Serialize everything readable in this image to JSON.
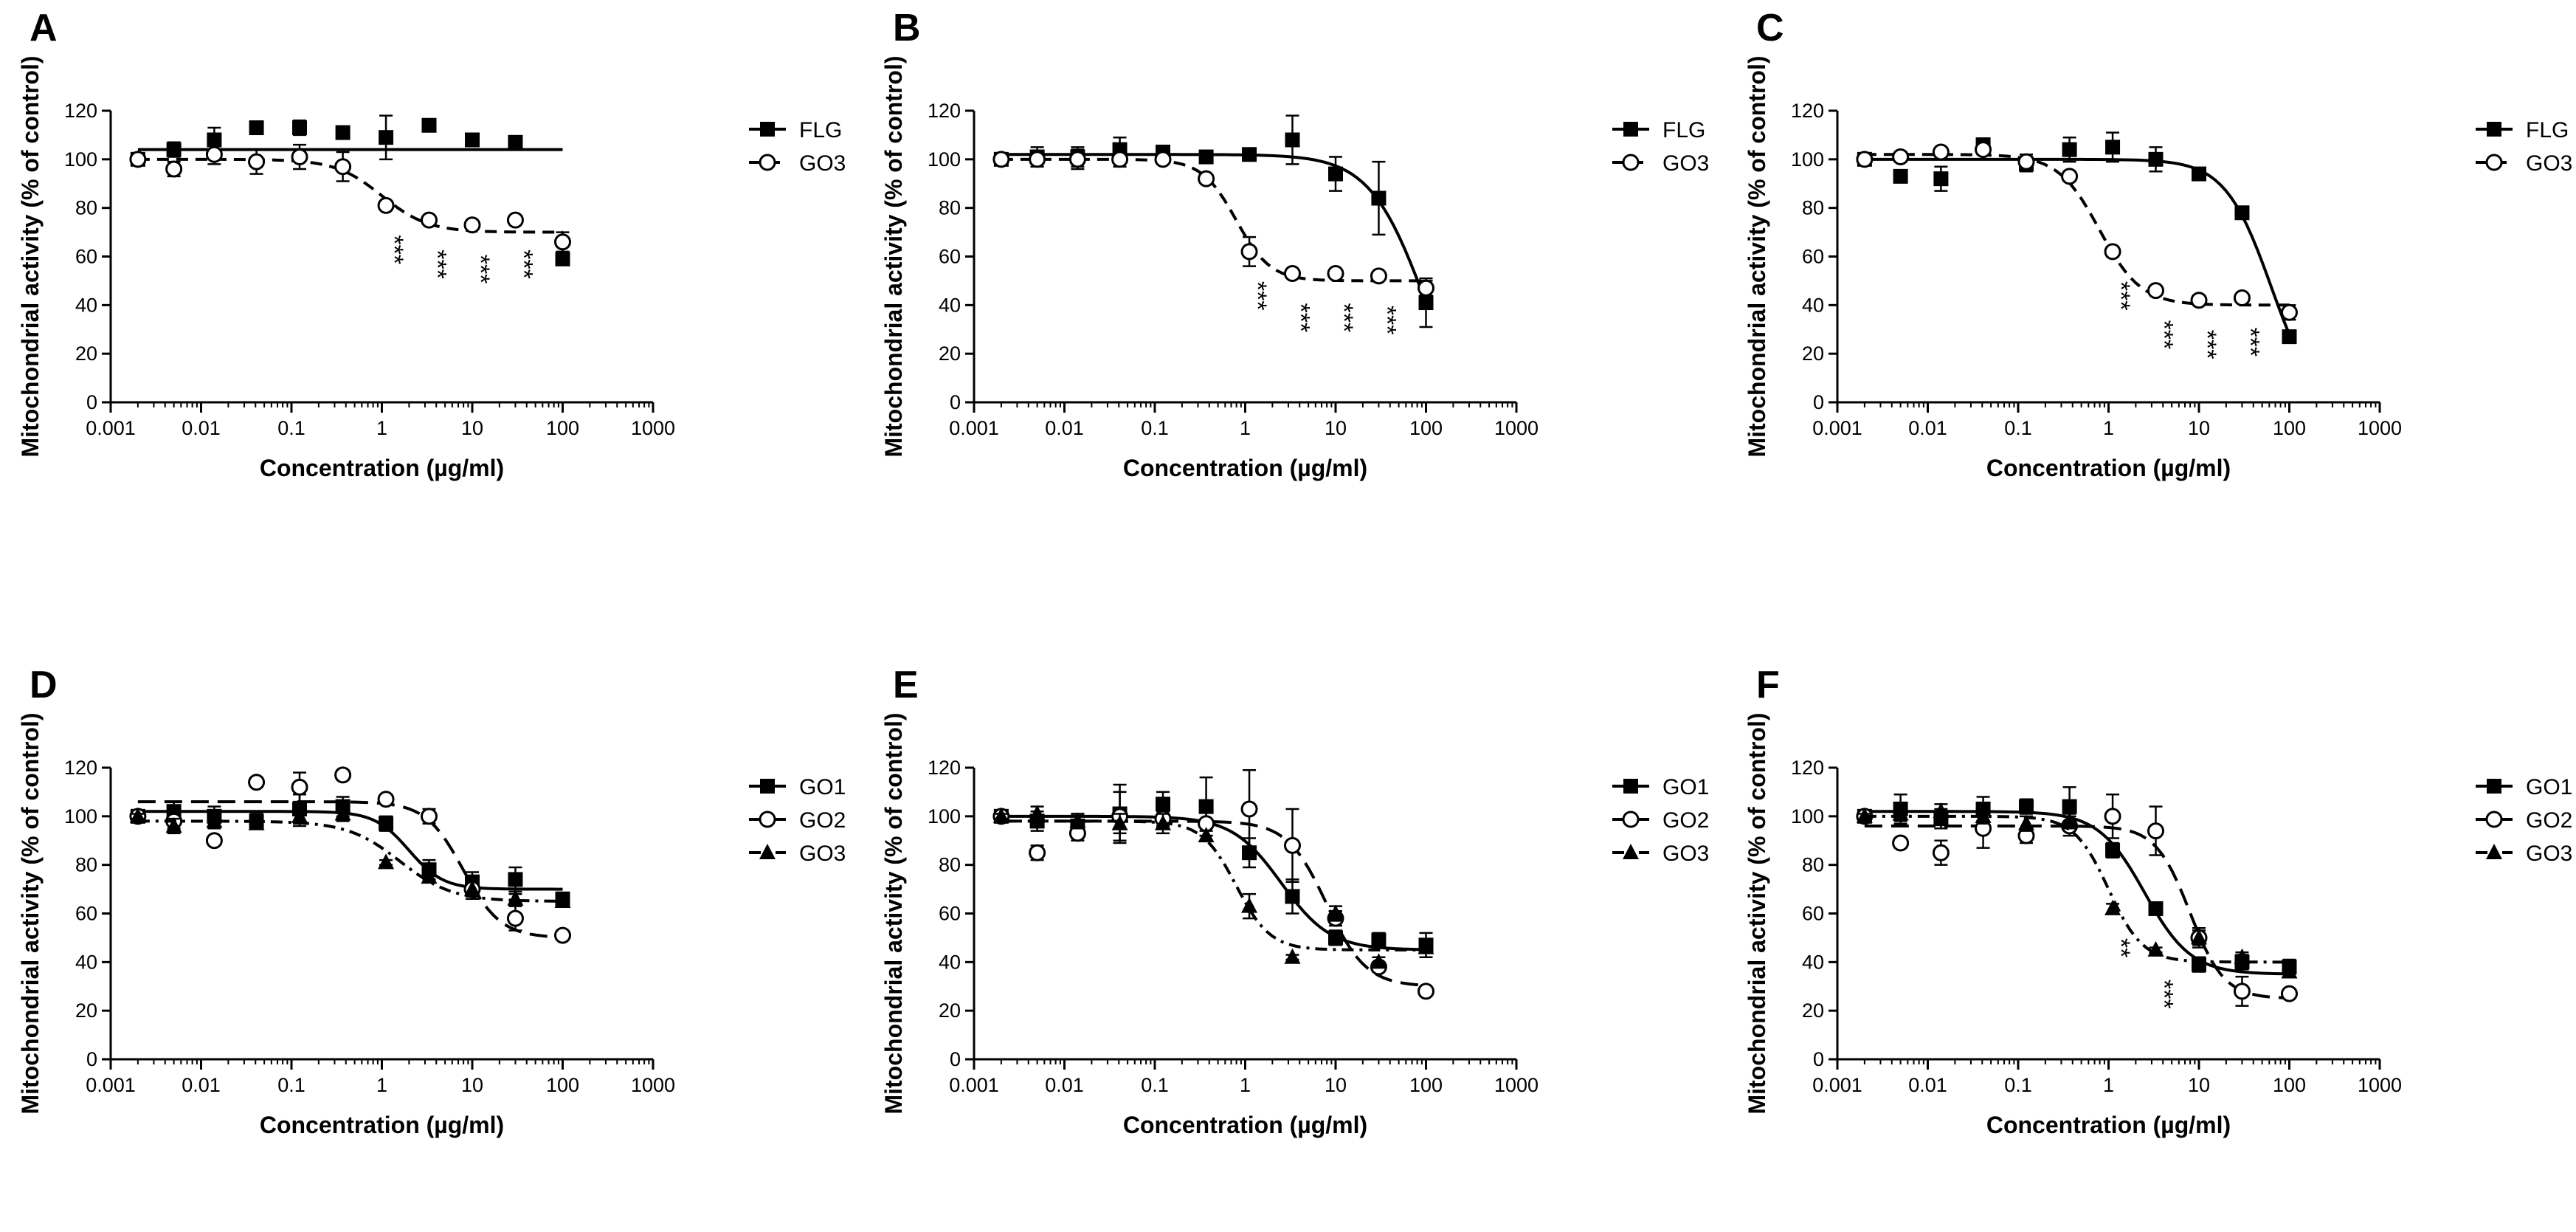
{
  "chart_data": [
    {
      "type": "scatter",
      "panel": "A",
      "xlabel": "Concentration (µg/ml)",
      "ylabel": "Mitochondrial activity (% of control)",
      "xscale": "log",
      "xlim": [
        0.001,
        1000
      ],
      "ylim": [
        0,
        120
      ],
      "xticks": [
        "0.001",
        "0.01",
        "0.1",
        "1",
        "10",
        "100",
        "1000"
      ],
      "yticks": [
        0,
        20,
        40,
        60,
        80,
        100,
        120
      ],
      "legend_position": "right",
      "series": [
        {
          "name": "FLG",
          "marker": "filled-square",
          "line": "solid",
          "x": [
            0.002,
            0.005,
            0.014,
            0.041,
            0.123,
            0.37,
            1.11,
            3.33,
            10,
            30,
            100
          ],
          "values": [
            100,
            104,
            108,
            113,
            113,
            111,
            109,
            114,
            108,
            107,
            59
          ],
          "errors": [
            1,
            3,
            5,
            2,
            3,
            2,
            9,
            2,
            2,
            2,
            2
          ]
        },
        {
          "name": "GO3",
          "marker": "open-circle",
          "line": "dashed",
          "x": [
            0.002,
            0.005,
            0.014,
            0.041,
            0.123,
            0.37,
            1.11,
            3.33,
            10,
            30,
            100
          ],
          "values": [
            100,
            96,
            102,
            99,
            101,
            97,
            81,
            75,
            73,
            75,
            66
          ],
          "errors": [
            1,
            3,
            4,
            5,
            5,
            6,
            1,
            1,
            1,
            1,
            4
          ]
        }
      ],
      "annotations": [
        {
          "x": 1.11,
          "text": "***"
        },
        {
          "x": 3.33,
          "text": "***"
        },
        {
          "x": 10,
          "text": "***"
        },
        {
          "x": 30,
          "text": "***"
        }
      ]
    },
    {
      "type": "scatter",
      "panel": "B",
      "xlabel": "Concentration (µg/ml)",
      "ylabel": "Mitochondrial activity (% of control)",
      "xscale": "log",
      "xlim": [
        0.001,
        1000
      ],
      "ylim": [
        0,
        120
      ],
      "xticks": [
        "0.001",
        "0.01",
        "0.1",
        "1",
        "10",
        "100",
        "1000"
      ],
      "yticks": [
        0,
        20,
        40,
        60,
        80,
        100,
        120
      ],
      "legend_position": "right",
      "series": [
        {
          "name": "FLG",
          "marker": "filled-square",
          "line": "solid",
          "x": [
            0.002,
            0.005,
            0.014,
            0.041,
            0.123,
            0.37,
            1.11,
            3.33,
            10,
            30,
            100
          ],
          "values": [
            100,
            101,
            101,
            104,
            103,
            101,
            102,
            108,
            94,
            84,
            41
          ],
          "errors": [
            1,
            4,
            4,
            5,
            2,
            1,
            1,
            10,
            7,
            15,
            10
          ]
        },
        {
          "name": "GO3",
          "marker": "open-circle",
          "line": "dashed",
          "x": [
            0.002,
            0.005,
            0.014,
            0.041,
            0.123,
            0.37,
            1.11,
            3.33,
            10,
            30,
            100
          ],
          "values": [
            100,
            100,
            100,
            100,
            100,
            92,
            62,
            53,
            53,
            52,
            47
          ],
          "errors": [
            1,
            3,
            4,
            3,
            2,
            1,
            6,
            1,
            1,
            1,
            3
          ]
        }
      ],
      "annotations": [
        {
          "x": 1.11,
          "text": "***"
        },
        {
          "x": 3.33,
          "text": "***"
        },
        {
          "x": 10,
          "text": "***"
        },
        {
          "x": 30,
          "text": "***"
        }
      ]
    },
    {
      "type": "scatter",
      "panel": "C",
      "xlabel": "Concentration (µg/ml)",
      "ylabel": "Mitochondrial activity (% of control)",
      "xscale": "log",
      "xlim": [
        0.001,
        1000
      ],
      "ylim": [
        0,
        120
      ],
      "xticks": [
        "0.001",
        "0.01",
        "0.1",
        "1",
        "10",
        "100",
        "1000"
      ],
      "yticks": [
        0,
        20,
        40,
        60,
        80,
        100,
        120
      ],
      "legend_position": "right",
      "series": [
        {
          "name": "FLG",
          "marker": "filled-square",
          "line": "solid",
          "x": [
            0.002,
            0.005,
            0.014,
            0.041,
            0.123,
            0.37,
            1.11,
            3.33,
            10,
            30,
            100
          ],
          "values": [
            100,
            93,
            92,
            106,
            98,
            104,
            105,
            100,
            94,
            78,
            27
          ],
          "errors": [
            1,
            2,
            5,
            2,
            3,
            5,
            6,
            5,
            2,
            2,
            1
          ]
        },
        {
          "name": "GO3",
          "marker": "open-circle",
          "line": "dashed",
          "x": [
            0.002,
            0.005,
            0.014,
            0.041,
            0.123,
            0.37,
            1.11,
            3.33,
            10,
            30,
            100
          ],
          "values": [
            100,
            101,
            103,
            104,
            99,
            93,
            62,
            46,
            42,
            43,
            37
          ],
          "errors": [
            1,
            2,
            1,
            2,
            3,
            2,
            2,
            1,
            2,
            1,
            3
          ]
        }
      ],
      "annotations": [
        {
          "x": 1.11,
          "text": "***"
        },
        {
          "x": 3.33,
          "text": "***"
        },
        {
          "x": 10,
          "text": "***"
        },
        {
          "x": 30,
          "text": "***"
        }
      ]
    },
    {
      "type": "scatter",
      "panel": "D",
      "xlabel": "Concentration (µg/ml)",
      "ylabel": "Mitochondrial activity (% of control)",
      "xscale": "log",
      "xlim": [
        0.001,
        1000
      ],
      "ylim": [
        0,
        120
      ],
      "xticks": [
        "0.001",
        "0.01",
        "0.1",
        "1",
        "10",
        "100",
        "1000"
      ],
      "yticks": [
        0,
        20,
        40,
        60,
        80,
        100,
        120
      ],
      "legend_position": "right",
      "series": [
        {
          "name": "GO1",
          "marker": "filled-square",
          "line": "solid",
          "x": [
            0.002,
            0.005,
            0.014,
            0.041,
            0.123,
            0.37,
            1.11,
            3.33,
            10,
            30,
            100
          ],
          "values": [
            100,
            102,
            100,
            98,
            103,
            104,
            97,
            78,
            73,
            74,
            66
          ],
          "errors": [
            1,
            4,
            4,
            3,
            6,
            4,
            3,
            4,
            4,
            5,
            2
          ]
        },
        {
          "name": "GO2",
          "marker": "open-circle",
          "line": "long-dash",
          "x": [
            0.002,
            0.005,
            0.014,
            0.041,
            0.123,
            0.37,
            1.11,
            3.33,
            10,
            30,
            100
          ],
          "values": [
            100,
            98,
            90,
            114,
            112,
            117,
            107,
            100,
            70,
            58,
            51
          ],
          "errors": [
            1,
            3,
            1,
            1,
            6,
            2,
            1,
            3,
            4,
            5,
            1
          ]
        },
        {
          "name": "GO3",
          "marker": "filled-triangle",
          "line": "dash-dot",
          "x": [
            0.002,
            0.005,
            0.014,
            0.041,
            0.123,
            0.37,
            1.11,
            3.33,
            10,
            30,
            100
          ],
          "values": [
            100,
            96,
            98,
            97,
            100,
            101,
            81,
            75,
            70,
            66,
            65
          ],
          "errors": [
            1,
            3,
            3,
            2,
            4,
            3,
            1,
            2,
            3,
            2,
            2
          ]
        }
      ],
      "annotations": []
    },
    {
      "type": "scatter",
      "panel": "E",
      "xlabel": "Concentration (µg/ml)",
      "ylabel": "Mitochondrial activity (% of control)",
      "xscale": "log",
      "xlim": [
        0.001,
        1000
      ],
      "ylim": [
        0,
        120
      ],
      "xticks": [
        "0.001",
        "0.01",
        "0.1",
        "1",
        "10",
        "100",
        "1000"
      ],
      "yticks": [
        0,
        20,
        40,
        60,
        80,
        100,
        120
      ],
      "legend_position": "right",
      "series": [
        {
          "name": "GO1",
          "marker": "filled-square",
          "line": "solid",
          "x": [
            0.002,
            0.005,
            0.014,
            0.041,
            0.123,
            0.37,
            1.11,
            3.33,
            10,
            30,
            100
          ],
          "values": [
            100,
            98,
            96,
            101,
            105,
            104,
            85,
            67,
            50,
            49,
            47
          ],
          "errors": [
            1,
            4,
            5,
            12,
            5,
            12,
            6,
            7,
            3,
            3,
            5
          ]
        },
        {
          "name": "GO2",
          "marker": "open-circle",
          "line": "long-dash",
          "x": [
            0.002,
            0.005,
            0.014,
            0.041,
            0.123,
            0.37,
            1.11,
            3.33,
            10,
            30,
            100
          ],
          "values": [
            100,
            85,
            93,
            100,
            99,
            97,
            103,
            88,
            58,
            38,
            28
          ],
          "errors": [
            1,
            3,
            3,
            10,
            3,
            5,
            16,
            15,
            3,
            2,
            1
          ]
        },
        {
          "name": "GO3",
          "marker": "filled-triangle",
          "line": "dash-dot",
          "x": [
            0.002,
            0.005,
            0.014,
            0.041,
            0.123,
            0.37,
            1.11,
            3.33,
            10,
            30,
            100
          ],
          "values": [
            100,
            101,
            98,
            97,
            97,
            92,
            63,
            42,
            60,
            40,
            46
          ],
          "errors": [
            1,
            3,
            3,
            4,
            4,
            2,
            5,
            1,
            3,
            2,
            2
          ]
        }
      ],
      "annotations": []
    },
    {
      "type": "scatter",
      "panel": "F",
      "xlabel": "Concentration (µg/ml)",
      "ylabel": "Mitochondrial activity (% of control)",
      "xscale": "log",
      "xlim": [
        0.001,
        1000
      ],
      "ylim": [
        0,
        120
      ],
      "xticks": [
        "0.001",
        "0.01",
        "0.1",
        "1",
        "10",
        "100",
        "1000"
      ],
      "yticks": [
        0,
        20,
        40,
        60,
        80,
        100,
        120
      ],
      "legend_position": "right",
      "series": [
        {
          "name": "GO1",
          "marker": "filled-square",
          "line": "solid",
          "x": [
            0.002,
            0.005,
            0.014,
            0.041,
            0.123,
            0.37,
            1.11,
            3.33,
            10,
            30,
            100
          ],
          "values": [
            100,
            103,
            99,
            103,
            104,
            104,
            86,
            62,
            39,
            40,
            38
          ],
          "errors": [
            1,
            6,
            4,
            5,
            3,
            8,
            3,
            2,
            3,
            3,
            3
          ]
        },
        {
          "name": "GO2",
          "marker": "open-circle",
          "line": "long-dash",
          "x": [
            0.002,
            0.005,
            0.014,
            0.041,
            0.123,
            0.37,
            1.11,
            3.33,
            10,
            30,
            100
          ],
          "values": [
            100,
            89,
            85,
            95,
            92,
            96,
            100,
            94,
            50,
            28,
            27
          ],
          "errors": [
            1,
            2,
            5,
            8,
            3,
            4,
            9,
            10,
            4,
            6,
            1
          ]
        },
        {
          "name": "GO3",
          "marker": "filled-triangle",
          "line": "dash-dot",
          "x": [
            0.002,
            0.005,
            0.014,
            0.041,
            0.123,
            0.37,
            1.11,
            3.33,
            10,
            30,
            100
          ],
          "values": [
            100,
            101,
            102,
            100,
            97,
            98,
            62,
            45,
            50,
            42,
            36
          ],
          "errors": [
            1,
            3,
            3,
            3,
            3,
            3,
            2,
            1,
            3,
            2,
            2
          ]
        }
      ],
      "annotations": [
        {
          "x": 1.11,
          "text": "**"
        },
        {
          "x": 3.33,
          "text": "***"
        }
      ]
    }
  ]
}
